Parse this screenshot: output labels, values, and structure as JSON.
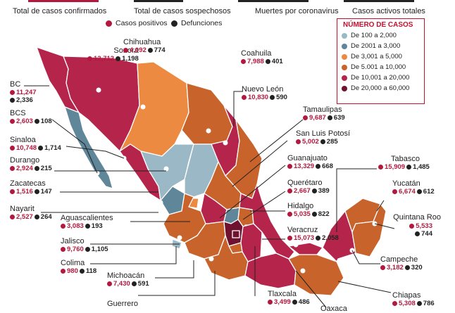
{
  "top_stats": [
    {
      "value": "",
      "label": "Total de casos confirmados"
    },
    {
      "value": "",
      "label": "Total de casos sospechosos"
    },
    {
      "value": "",
      "label": "Muertes por coronavirus"
    },
    {
      "value": "",
      "label": "Casos activos totales"
    }
  ],
  "legend_top": {
    "positive": "Casos positivos",
    "deaths": "Defunciones"
  },
  "legend": {
    "title": "NÚMERO DE CASOS",
    "items": [
      {
        "label": "De 100 a 2,000",
        "color": "#9ab8c6"
      },
      {
        "label": "De 2001 a 3,000",
        "color": "#5f8799"
      },
      {
        "label": "De 3,001 a 5,000",
        "color": "#eb8a40"
      },
      {
        "label": "De 5.001 a 10,000",
        "color": "#c8632b"
      },
      {
        "label": "De 10,001 a 20,000",
        "color": "#b5244a"
      },
      {
        "label": "De 20,000 a 60,000",
        "color": "#6e1230"
      }
    ]
  },
  "states": [
    {
      "name": "Sonora",
      "positive": "12,712",
      "deaths": "1,198"
    },
    {
      "name": "Chihuahua",
      "positive": "4,092",
      "deaths": "774"
    },
    {
      "name": "Coahuila",
      "positive": "7,988",
      "deaths": "401"
    },
    {
      "name": "BC",
      "positive": "11,247",
      "deaths": "2,336"
    },
    {
      "name": "BCS",
      "positive": "2,603",
      "deaths": "108"
    },
    {
      "name": "Nuevo León",
      "positive": "10,830",
      "deaths": "590"
    },
    {
      "name": "Tamaulipas",
      "positive": "9,687",
      "deaths": "639"
    },
    {
      "name": "Sinaloa",
      "positive": "10,748",
      "deaths": "1,714"
    },
    {
      "name": "San Luis Potosí",
      "positive": "5,002",
      "deaths": "285"
    },
    {
      "name": "Durango",
      "positive": "2,924",
      "deaths": "215"
    },
    {
      "name": "Guanajuato",
      "positive": "13,329",
      "deaths": "668"
    },
    {
      "name": "Tabasco",
      "positive": "15,909",
      "deaths": "1,485"
    },
    {
      "name": "Zacatecas",
      "positive": "1,516",
      "deaths": "147"
    },
    {
      "name": "Querétaro",
      "positive": "2,667",
      "deaths": "389"
    },
    {
      "name": "Yucatán",
      "positive": "6,674",
      "deaths": "612"
    },
    {
      "name": "Nayarit",
      "positive": "2,527",
      "deaths": "264"
    },
    {
      "name": "Hidalgo",
      "positive": "5,035",
      "deaths": "822"
    },
    {
      "name": "Aguascalientes",
      "positive": "3,083",
      "deaths": "193"
    },
    {
      "name": "Quintana Roo",
      "positive": "5,533",
      "deaths": "744"
    },
    {
      "name": "Veracruz",
      "positive": "15,073",
      "deaths": "2,058"
    },
    {
      "name": "Jalisco",
      "positive": "9,760",
      "deaths": "1,105"
    },
    {
      "name": "Campeche",
      "positive": "3,182",
      "deaths": "320"
    },
    {
      "name": "Colima",
      "positive": "980",
      "deaths": "118"
    },
    {
      "name": "Michoacán",
      "positive": "7,430",
      "deaths": "591"
    },
    {
      "name": "Tlaxcala",
      "positive": "3,499",
      "deaths": "486"
    },
    {
      "name": "Chiapas",
      "positive": "5,308",
      "deaths": "786"
    },
    {
      "name": "Guerrero",
      "positive": "",
      "deaths": ""
    },
    {
      "name": "Oaxaca",
      "positive": "",
      "deaths": ""
    }
  ]
}
